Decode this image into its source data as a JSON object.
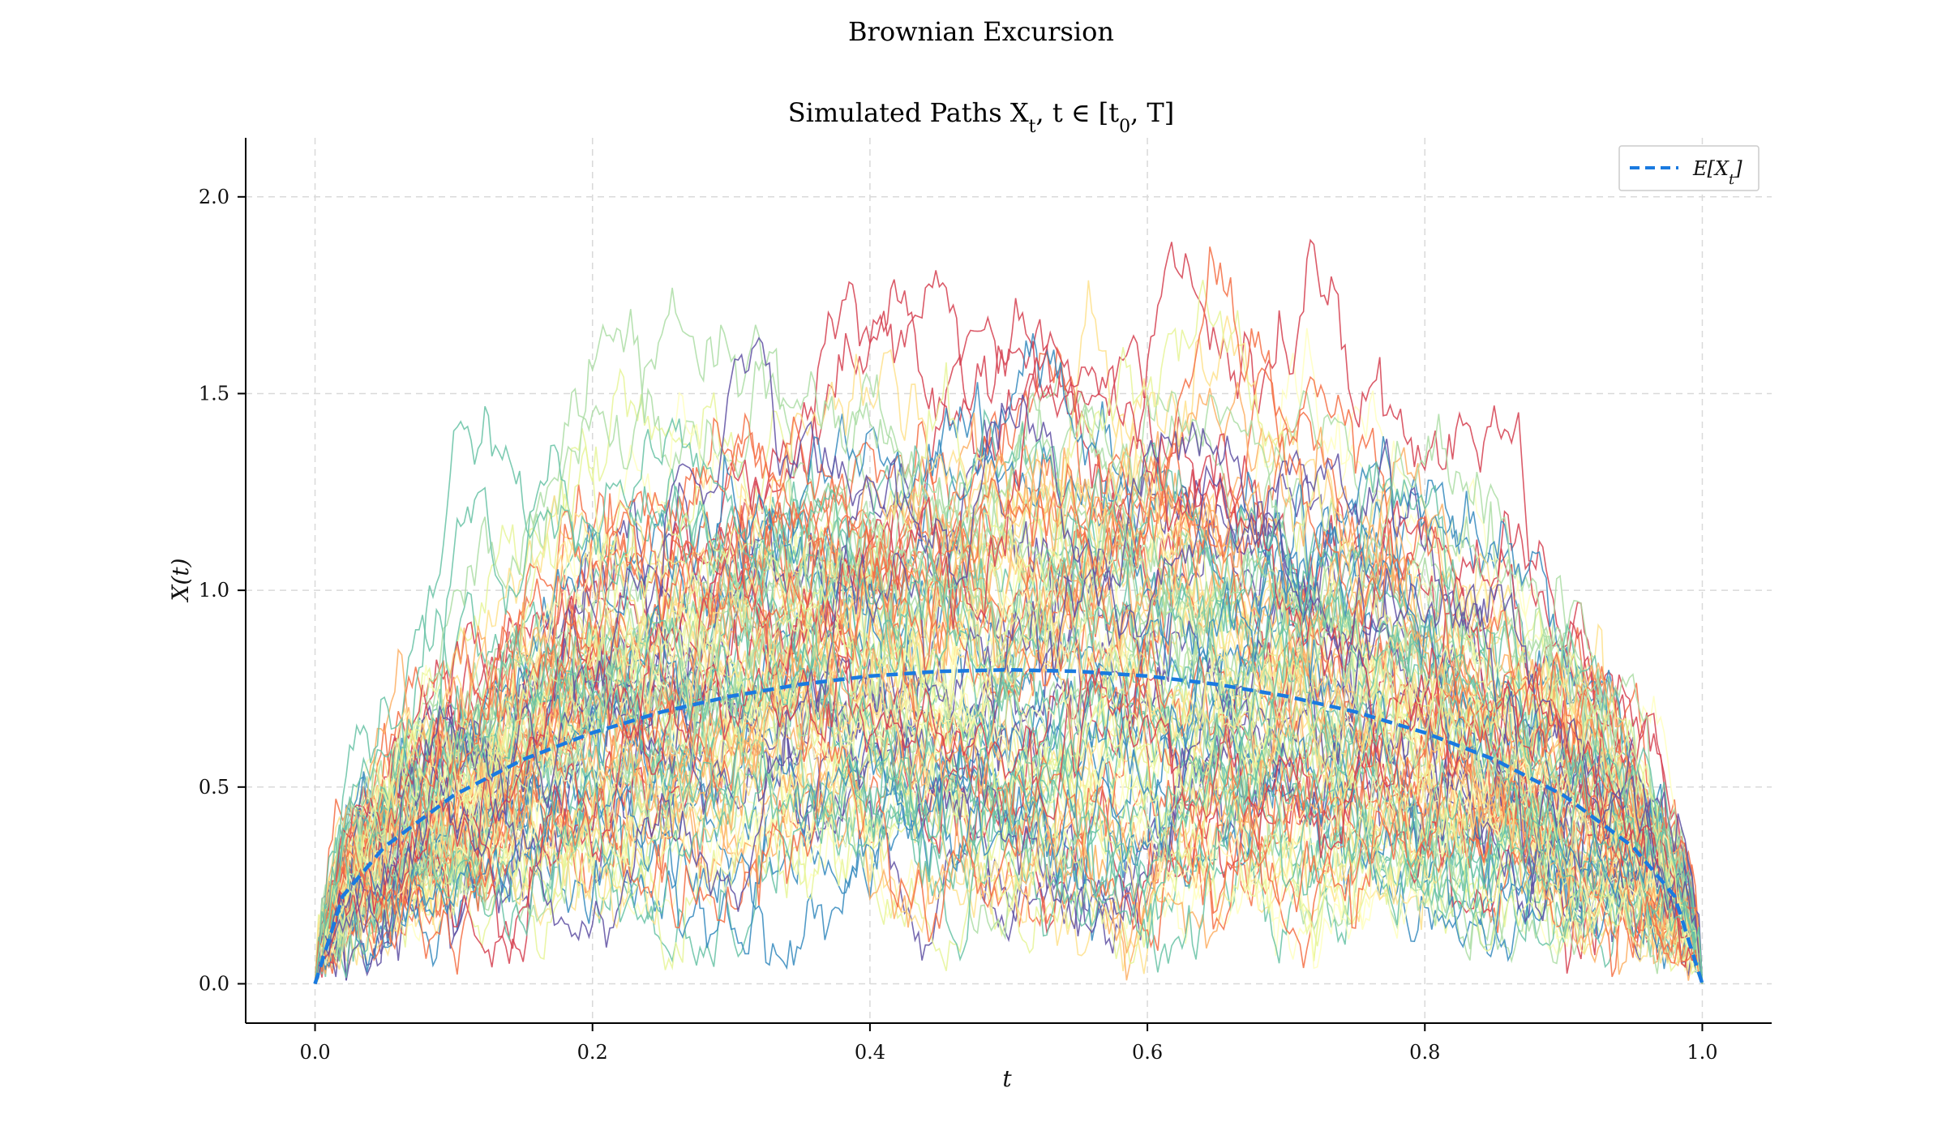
{
  "figure": {
    "suptitle": "Brownian Excursion"
  },
  "chart_data": {
    "type": "line",
    "title": "Simulated Paths X_t, t ∈ [t_0, T]",
    "xlabel": "t",
    "ylabel": "X(t)",
    "xlim": [
      -0.05,
      1.05
    ],
    "ylim": [
      -0.1,
      2.15
    ],
    "xticks": [
      0.0,
      0.2,
      0.4,
      0.6,
      0.8,
      1.0
    ],
    "xtick_labels": [
      "0.0",
      "0.2",
      "0.4",
      "0.6",
      "0.8",
      "1.0"
    ],
    "yticks": [
      0.0,
      0.5,
      1.0,
      1.5,
      2.0
    ],
    "ytick_labels": [
      "0.0",
      "0.5",
      "1.0",
      "1.5",
      "2.0"
    ],
    "grid": true,
    "legend": {
      "position": "top-right",
      "entries": [
        {
          "label": "E[X_t]",
          "color": "#1a7ae0",
          "style": "dashed"
        }
      ]
    },
    "expectation_curve": {
      "name": "E[X_t]",
      "color": "#1a7ae0",
      "x": [
        0.0,
        0.02,
        0.05,
        0.1,
        0.15,
        0.2,
        0.25,
        0.3,
        0.35,
        0.4,
        0.45,
        0.5,
        0.55,
        0.6,
        0.65,
        0.7,
        0.75,
        0.8,
        0.85,
        0.9,
        0.95,
        0.98,
        1.0
      ],
      "y": [
        0.0,
        0.223,
        0.348,
        0.479,
        0.57,
        0.638,
        0.691,
        0.731,
        0.761,
        0.782,
        0.794,
        0.798,
        0.794,
        0.782,
        0.761,
        0.731,
        0.691,
        0.638,
        0.57,
        0.479,
        0.348,
        0.223,
        0.0
      ]
    },
    "simulated_paths": {
      "count": 100,
      "steps": 1000,
      "colormap": "Spectral",
      "colormap_colors": [
        "#d53e4f",
        "#f46d43",
        "#fdae61",
        "#fee08b",
        "#ffffbf",
        "#e6f598",
        "#abdda4",
        "#66c2a5",
        "#3288bd",
        "#5e4fa2"
      ]
    }
  }
}
